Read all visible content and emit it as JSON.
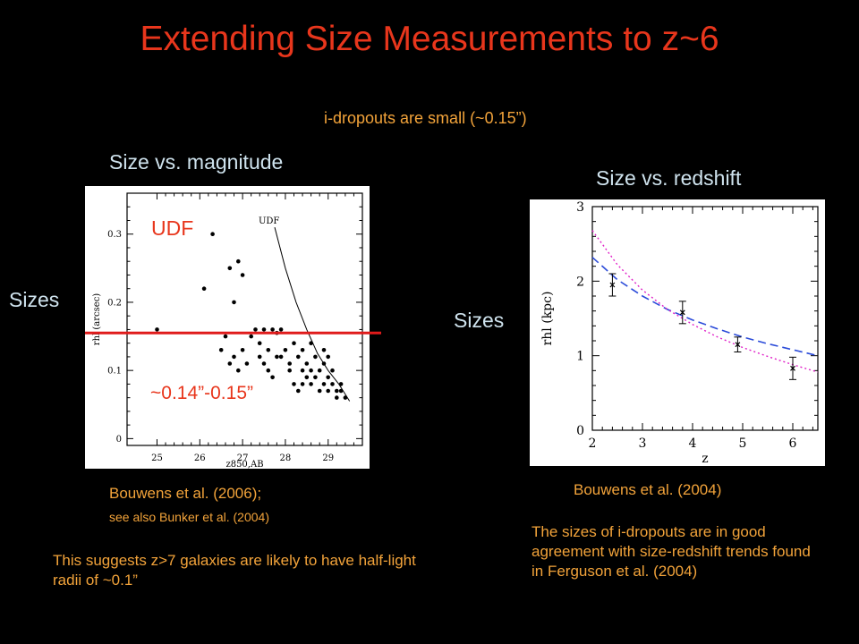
{
  "slide": {
    "title": "Extending Size Measurements to z~6",
    "subtitle": "i-dropouts are small (~0.15”)",
    "left_heading": "Size vs. magnitude",
    "right_heading": "Size vs. redshift",
    "sizes_label_left": "Sizes",
    "sizes_label_right": "Sizes",
    "left_ref_line1": "Bouwens et al. (2006);",
    "left_ref_line2": "see also Bunker et al. (2004)",
    "right_ref": "Bouwens et al. (2004)",
    "suggest_text": "This suggests z>7 galaxies are likely to have half-light radii of ~0.1”",
    "agree_text": "The sizes of i-dropouts are in good agreement with size-redshift trends found in Ferguson et al. (2004)",
    "colors": {
      "title": "#e8361c",
      "orange_text": "#f2a33a",
      "light_text": "#cfe3ee",
      "highlight_line": "#e01b1b"
    }
  },
  "chart_data": [
    {
      "type": "scatter",
      "xlabel": "z850,AB",
      "ylabel": "rhl (arcsec)",
      "xlim": [
        24.3,
        29.8
      ],
      "ylim": [
        -0.01,
        0.36
      ],
      "xticks": [
        "25",
        "26",
        "27",
        "28",
        "29"
      ],
      "yticks": [
        "0",
        "0.1",
        "0.2",
        "0.3"
      ],
      "curve_label": "UDF",
      "limit_curve": [
        [
          27.75,
          0.31
        ],
        [
          28.0,
          0.25
        ],
        [
          28.25,
          0.2
        ],
        [
          28.5,
          0.16
        ],
        [
          28.75,
          0.125
        ],
        [
          29.0,
          0.1
        ],
        [
          29.25,
          0.08
        ],
        [
          29.5,
          0.055
        ]
      ],
      "points": [
        [
          25.0,
          0.16
        ],
        [
          26.1,
          0.22
        ],
        [
          26.3,
          0.3
        ],
        [
          26.5,
          0.13
        ],
        [
          26.7,
          0.25
        ],
        [
          26.9,
          0.26
        ],
        [
          26.8,
          0.2
        ],
        [
          27.0,
          0.24
        ],
        [
          26.6,
          0.15
        ],
        [
          26.8,
          0.12
        ],
        [
          27.0,
          0.13
        ],
        [
          27.2,
          0.15
        ],
        [
          27.3,
          0.16
        ],
        [
          27.5,
          0.16
        ],
        [
          27.7,
          0.16
        ],
        [
          27.8,
          0.155
        ],
        [
          27.9,
          0.16
        ],
        [
          27.4,
          0.12
        ],
        [
          27.5,
          0.11
        ],
        [
          27.6,
          0.1
        ],
        [
          27.7,
          0.09
        ],
        [
          27.8,
          0.12
        ],
        [
          28.0,
          0.13
        ],
        [
          28.1,
          0.1
        ],
        [
          28.2,
          0.14
        ],
        [
          28.3,
          0.12
        ],
        [
          28.4,
          0.13
        ],
        [
          28.5,
          0.11
        ],
        [
          28.6,
          0.14
        ],
        [
          28.7,
          0.12
        ],
        [
          28.8,
          0.1
        ],
        [
          28.9,
          0.11
        ],
        [
          29.0,
          0.09
        ],
        [
          29.1,
          0.08
        ],
        [
          29.2,
          0.07
        ],
        [
          29.3,
          0.08
        ],
        [
          28.5,
          0.09
        ],
        [
          28.6,
          0.08
        ],
        [
          28.7,
          0.09
        ],
        [
          28.8,
          0.07
        ],
        [
          28.9,
          0.08
        ],
        [
          29.0,
          0.07
        ],
        [
          29.2,
          0.06
        ],
        [
          29.4,
          0.06
        ],
        [
          28.3,
          0.07
        ],
        [
          28.4,
          0.1
        ],
        [
          28.2,
          0.08
        ],
        [
          28.1,
          0.11
        ],
        [
          27.9,
          0.12
        ],
        [
          27.6,
          0.13
        ],
        [
          27.4,
          0.14
        ],
        [
          27.1,
          0.11
        ],
        [
          26.9,
          0.1
        ],
        [
          26.7,
          0.11
        ],
        [
          28.9,
          0.13
        ],
        [
          29.1,
          0.1
        ],
        [
          29.3,
          0.07
        ],
        [
          28.6,
          0.1
        ],
        [
          28.4,
          0.08
        ],
        [
          29.0,
          0.12
        ]
      ],
      "highlight": {
        "label": "UDF",
        "value_label": "~0.14”-0.15”",
        "y": 0.155
      }
    },
    {
      "type": "line",
      "xlabel": "z",
      "ylabel": "rhl (kpc)",
      "xlim": [
        2.0,
        6.5
      ],
      "ylim": [
        0,
        3.0
      ],
      "xticks": [
        "2",
        "3",
        "4",
        "5",
        "6"
      ],
      "yticks": [
        "0",
        "1",
        "2",
        "3"
      ],
      "points": [
        {
          "x": 2.4,
          "y": 1.95,
          "yerr": 0.15
        },
        {
          "x": 3.8,
          "y": 1.58,
          "yerr": 0.15
        },
        {
          "x": 4.9,
          "y": 1.15,
          "yerr": 0.1
        },
        {
          "x": 6.0,
          "y": 0.83,
          "yerr": 0.15
        }
      ],
      "curves": [
        {
          "style": "dashed",
          "color": "#2b4bd9",
          "points": [
            [
              2.0,
              2.32
            ],
            [
              2.5,
              2.02
            ],
            [
              3.0,
              1.8
            ],
            [
              3.5,
              1.62
            ],
            [
              4.0,
              1.48
            ],
            [
              4.5,
              1.36
            ],
            [
              5.0,
              1.25
            ],
            [
              5.5,
              1.16
            ],
            [
              6.0,
              1.08
            ],
            [
              6.5,
              1.0
            ]
          ]
        },
        {
          "style": "dotted",
          "color": "#e020c8",
          "points": [
            [
              2.0,
              2.68
            ],
            [
              2.5,
              2.22
            ],
            [
              3.0,
              1.88
            ],
            [
              3.5,
              1.62
            ],
            [
              4.0,
              1.42
            ],
            [
              4.5,
              1.25
            ],
            [
              5.0,
              1.11
            ],
            [
              5.5,
              0.99
            ],
            [
              6.0,
              0.88
            ],
            [
              6.5,
              0.78
            ]
          ]
        }
      ]
    }
  ]
}
